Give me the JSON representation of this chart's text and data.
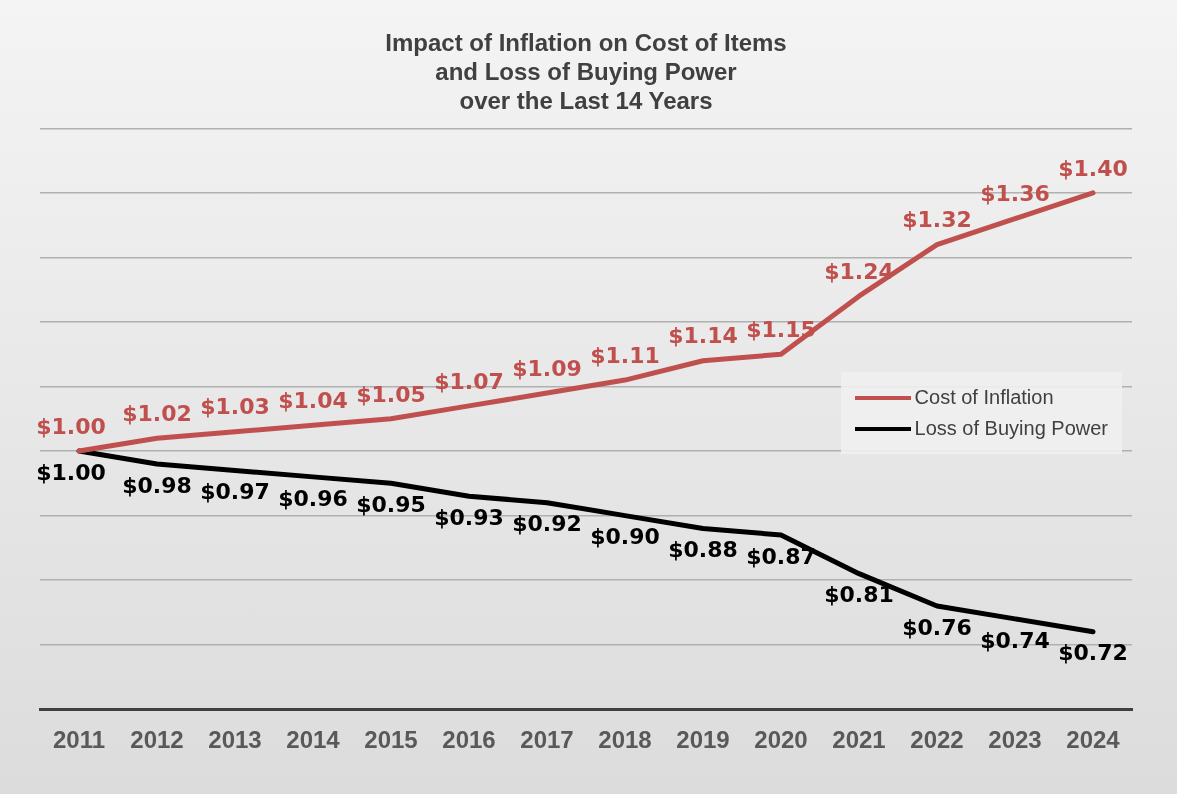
{
  "chart_data": {
    "type": "line",
    "title": "Impact of Inflation on Cost of Items\nand Loss of Buying Power\nover the Last 14 Years",
    "categories": [
      "2011",
      "2012",
      "2013",
      "2014",
      "2015",
      "2016",
      "2017",
      "2018",
      "2019",
      "2020",
      "2021",
      "2022",
      "2023",
      "2024"
    ],
    "series": [
      {
        "name": "Cost of Inflation",
        "color": "#c0504d",
        "values": [
          1.0,
          1.02,
          1.03,
          1.04,
          1.05,
          1.07,
          1.09,
          1.11,
          1.14,
          1.15,
          1.24,
          1.32,
          1.36,
          1.4
        ],
        "value_labels": [
          "$1.00",
          "$1.02",
          "$1.03",
          "$1.04",
          "$1.05",
          "$1.07",
          "$1.09",
          "$1.11",
          "$1.14",
          "$1.15",
          "$1.24",
          "$1.32",
          "$1.36",
          "$1.40"
        ]
      },
      {
        "name": "Loss of Buying Power",
        "color": "#000000",
        "values": [
          1.0,
          0.98,
          0.97,
          0.96,
          0.95,
          0.93,
          0.92,
          0.9,
          0.88,
          0.87,
          0.81,
          0.76,
          0.74,
          0.72
        ],
        "value_labels": [
          "$1.00",
          "$0.98",
          "$0.97",
          "$0.96",
          "$0.95",
          "$0.93",
          "$0.92",
          "$0.90",
          "$0.88",
          "$0.87",
          "$0.81",
          "$0.76",
          "$0.74",
          "$0.72"
        ]
      }
    ],
    "tick_labels": "x",
    "grid": "y",
    "legend": "right",
    "marker": "none",
    "line_style": "solid"
  }
}
